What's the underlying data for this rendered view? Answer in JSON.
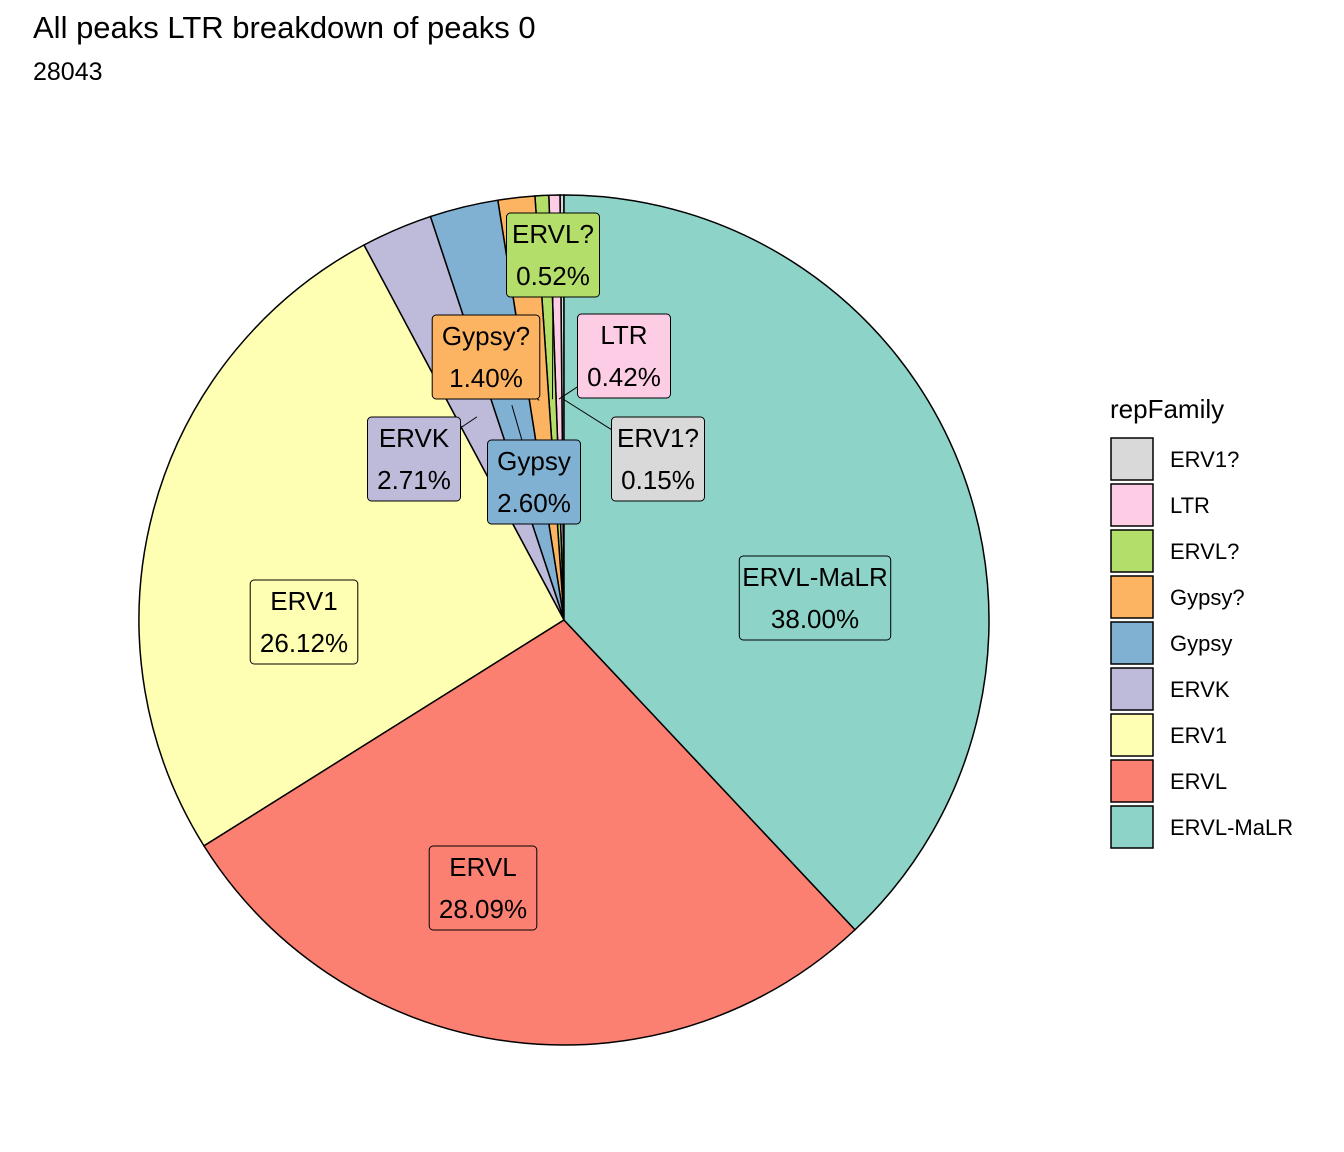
{
  "title": "All peaks LTR breakdown of peaks 0",
  "subtitle": "28043",
  "chart_data": {
    "type": "pie",
    "legend_title": "repFamily",
    "legend_position": "right",
    "slices": [
      {
        "name": "ERV1?",
        "value": 0.15,
        "label": "0.15%",
        "color": "#d9d9d9"
      },
      {
        "name": "LTR",
        "value": 0.42,
        "label": "0.42%",
        "color": "#fccde5"
      },
      {
        "name": "ERVL?",
        "value": 0.52,
        "label": "0.52%",
        "color": "#b3de69"
      },
      {
        "name": "Gypsy?",
        "value": 1.4,
        "label": "1.40%",
        "color": "#fdb462"
      },
      {
        "name": "Gypsy",
        "value": 2.6,
        "label": "2.60%",
        "color": "#80b1d3"
      },
      {
        "name": "ERVK",
        "value": 2.71,
        "label": "2.71%",
        "color": "#bebada"
      },
      {
        "name": "ERV1",
        "value": 26.12,
        "label": "26.12%",
        "color": "#ffffb3"
      },
      {
        "name": "ERVL",
        "value": 28.09,
        "label": "28.09%",
        "color": "#fb8072"
      },
      {
        "name": "ERVL-MaLR",
        "value": 38.0,
        "label": "38.00%",
        "color": "#8dd3c7"
      }
    ]
  }
}
